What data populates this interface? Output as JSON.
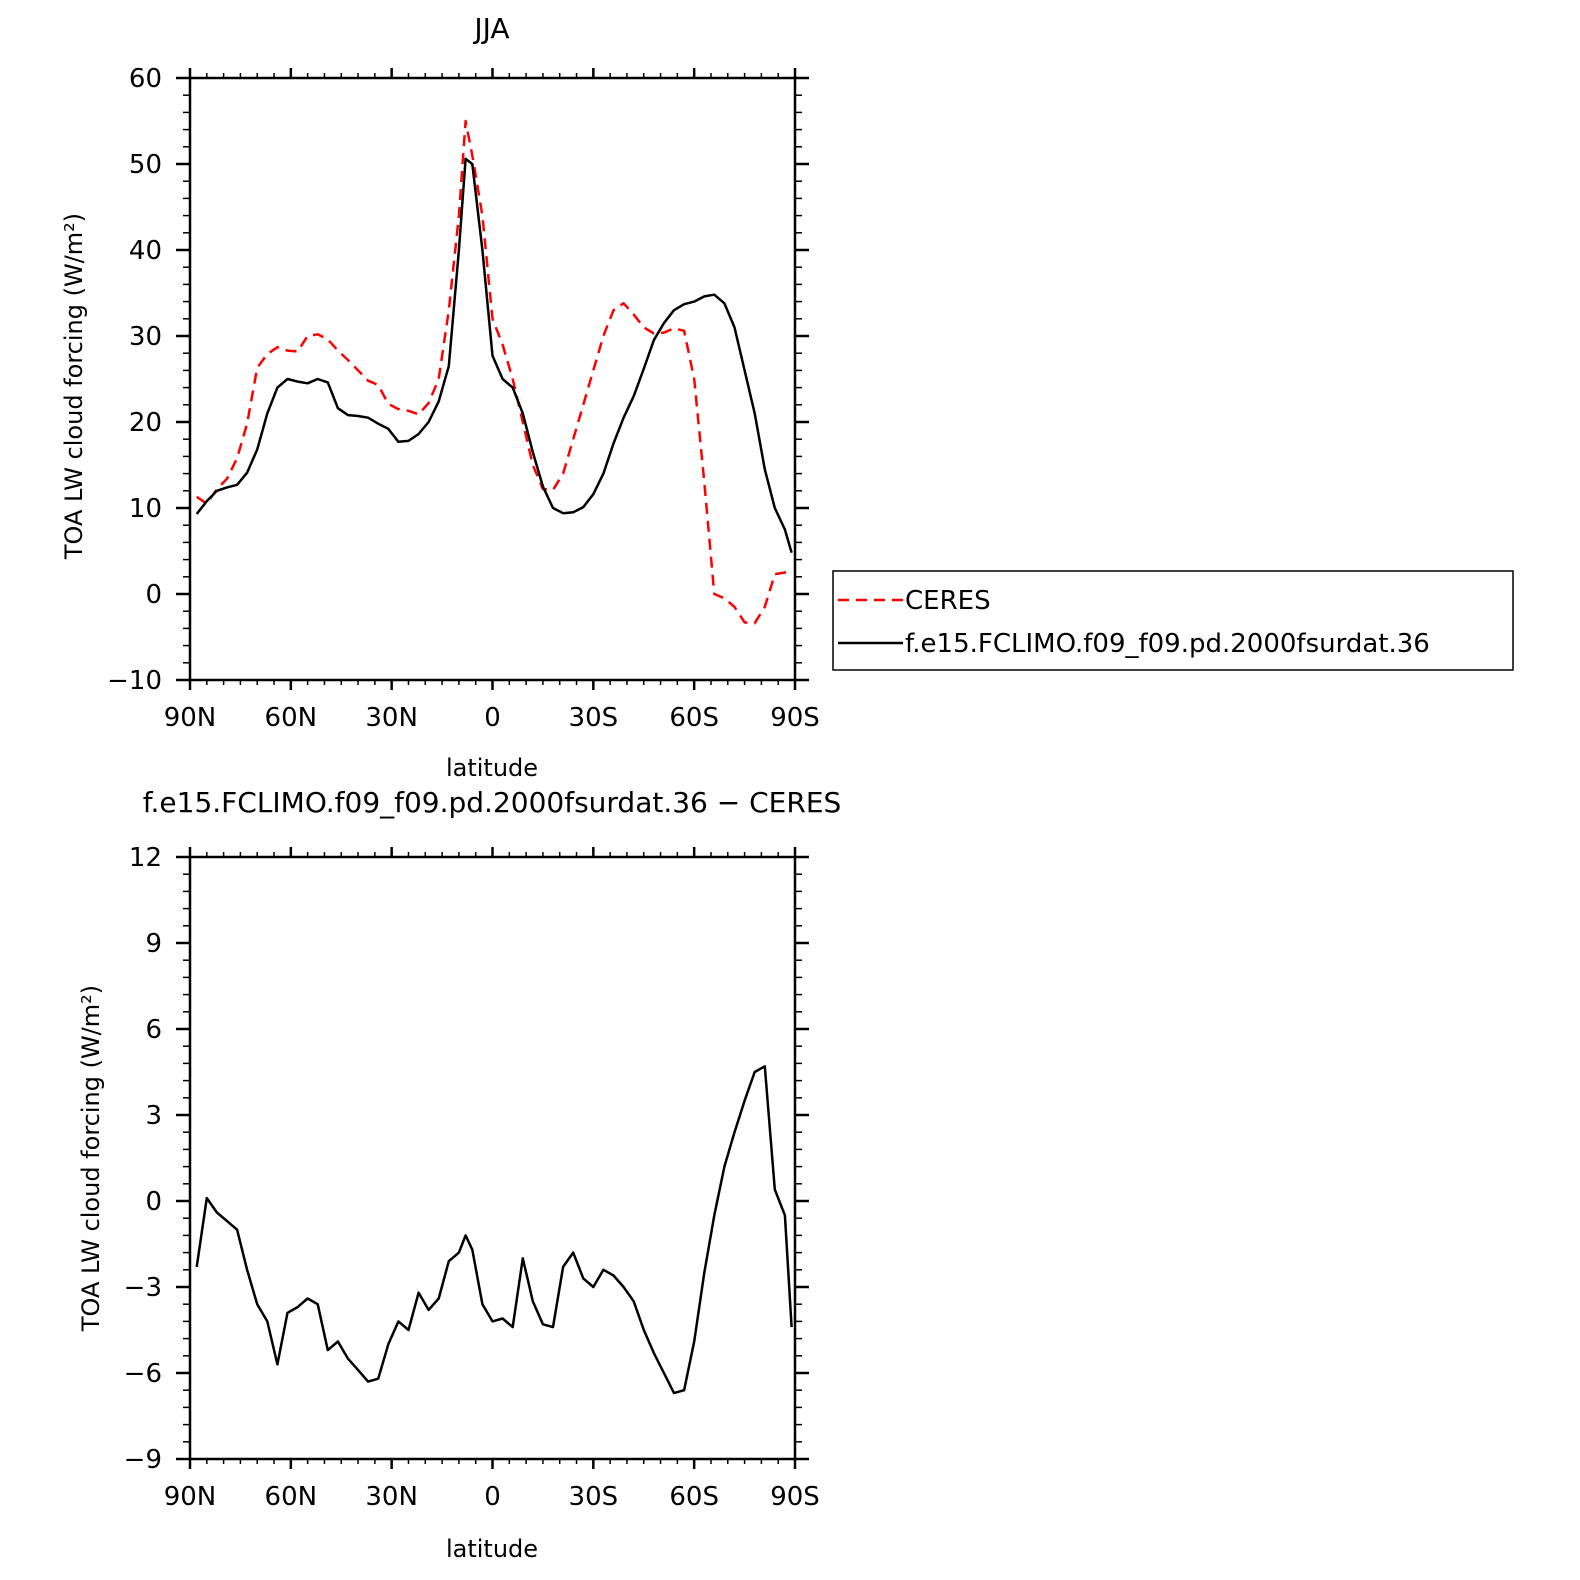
{
  "chart_data": [
    {
      "type": "line",
      "title": "JJA",
      "xlabel": "latitude",
      "ylabel": "TOA LW cloud forcing (W/m²)",
      "xlim": [
        -90,
        90
      ],
      "ylim": [
        -10,
        60
      ],
      "xticks": [
        {
          "value": -90,
          "label": "90N"
        },
        {
          "value": -60,
          "label": "60N"
        },
        {
          "value": -30,
          "label": "30N"
        },
        {
          "value": 0,
          "label": "0"
        },
        {
          "value": 30,
          "label": "30S"
        },
        {
          "value": 60,
          "label": "60S"
        },
        {
          "value": 90,
          "label": "90S"
        }
      ],
      "yticks": [
        {
          "value": 60,
          "label": "60"
        },
        {
          "value": 50,
          "label": "50"
        },
        {
          "value": 40,
          "label": "40"
        },
        {
          "value": 30,
          "label": "30"
        },
        {
          "value": 20,
          "label": "20"
        },
        {
          "value": 10,
          "label": "10"
        },
        {
          "value": 0,
          "label": "0"
        },
        {
          "value": -10,
          "label": "−10"
        }
      ],
      "legend_position": "right",
      "series": [
        {
          "name": "CERES",
          "color": "#ff0000",
          "dash": true,
          "x": [
            -88,
            -85,
            -82,
            -79,
            -76,
            -73,
            -70,
            -67,
            -64,
            -61,
            -58,
            -55,
            -52,
            -49,
            -46,
            -43,
            -40,
            -37,
            -34,
            -31,
            -28,
            -25,
            -22,
            -19,
            -16,
            -13,
            -10,
            -8,
            -6,
            -3,
            0,
            3,
            6,
            9,
            12,
            15,
            18,
            21,
            24,
            27,
            30,
            33,
            36,
            39,
            42,
            45,
            48,
            51,
            54,
            57,
            60,
            63,
            66,
            69,
            72,
            75,
            78,
            81,
            84,
            87,
            89
          ],
          "y": [
            11.3,
            10.5,
            12.2,
            13.4,
            15.8,
            19.8,
            26.3,
            27.9,
            28.7,
            28.3,
            28.2,
            30.0,
            30.2,
            29.6,
            28.3,
            27.2,
            26.0,
            24.8,
            24.3,
            22.1,
            21.5,
            21.3,
            20.9,
            22.2,
            25.0,
            33.0,
            44.0,
            55.0,
            51.0,
            44.0,
            32.0,
            29.0,
            25.0,
            20.0,
            15.0,
            12.2,
            12.1,
            14.0,
            18.0,
            22.0,
            26.0,
            30.0,
            33.0,
            33.8,
            32.5,
            31.0,
            30.3,
            30.4,
            30.9,
            30.6,
            25.0,
            13.0,
            0.0,
            -0.5,
            -1.5,
            -3.3,
            -3.4,
            -1.5,
            2.3,
            2.5,
            2.4
          ]
        },
        {
          "name": "f.e15.FCLIMO.f09_f09.pd.2000fsurdat.36",
          "color": "#000000",
          "dash": false,
          "x": [
            -88,
            -85,
            -82,
            -79,
            -76,
            -73,
            -70,
            -67,
            -64,
            -61,
            -58,
            -55,
            -52,
            -49,
            -46,
            -43,
            -40,
            -37,
            -34,
            -31,
            -28,
            -25,
            -22,
            -19,
            -16,
            -13,
            -10,
            -8,
            -6,
            -3,
            0,
            3,
            6,
            9,
            12,
            15,
            18,
            21,
            24,
            27,
            30,
            33,
            36,
            39,
            42,
            45,
            48,
            51,
            54,
            57,
            60,
            63,
            66,
            69,
            72,
            75,
            78,
            81,
            84,
            87,
            89
          ],
          "y": [
            9.3,
            10.8,
            12.0,
            12.4,
            12.7,
            14.1,
            16.8,
            21.0,
            24.0,
            25.0,
            24.7,
            24.5,
            25.0,
            24.6,
            21.6,
            20.8,
            20.7,
            20.5,
            19.8,
            19.2,
            17.7,
            17.8,
            18.6,
            20.0,
            22.4,
            26.5,
            40.0,
            50.6,
            50.0,
            40.0,
            27.7,
            25.0,
            24.0,
            21.0,
            16.5,
            12.5,
            10.0,
            9.4,
            9.5,
            10.1,
            11.6,
            14.0,
            17.5,
            20.5,
            23.0,
            26.2,
            29.5,
            31.5,
            33.0,
            33.7,
            34.0,
            34.6,
            34.8,
            33.8,
            31.0,
            26.0,
            21.0,
            14.5,
            10.0,
            7.5,
            4.8
          ]
        }
      ]
    },
    {
      "type": "line",
      "title": "f.e15.FCLIMO.f09_f09.pd.2000fsurdat.36 − CERES",
      "xlabel": "latitude",
      "ylabel": "TOA LW cloud forcing (W/m²)",
      "xlim": [
        -90,
        90
      ],
      "ylim": [
        -9,
        12
      ],
      "xticks": [
        {
          "value": -90,
          "label": "90N"
        },
        {
          "value": -60,
          "label": "60N"
        },
        {
          "value": -30,
          "label": "30N"
        },
        {
          "value": 0,
          "label": "0"
        },
        {
          "value": 30,
          "label": "30S"
        },
        {
          "value": 60,
          "label": "60S"
        },
        {
          "value": 90,
          "label": "90S"
        }
      ],
      "yticks": [
        {
          "value": 12,
          "label": "12"
        },
        {
          "value": 9,
          "label": "9"
        },
        {
          "value": 6,
          "label": "6"
        },
        {
          "value": 3,
          "label": "3"
        },
        {
          "value": 0,
          "label": "0"
        },
        {
          "value": -3,
          "label": "−3"
        },
        {
          "value": -6,
          "label": "−6"
        },
        {
          "value": -9,
          "label": "−9"
        }
      ],
      "series": [
        {
          "color": "#000000",
          "dash": false,
          "x": [
            -88,
            -85,
            -82,
            -79,
            -76,
            -73,
            -70,
            -67,
            -64,
            -61,
            -58,
            -55,
            -52,
            -49,
            -46,
            -43,
            -40,
            -37,
            -34,
            -31,
            -28,
            -25,
            -22,
            -19,
            -16,
            -13,
            -10,
            -8,
            -6,
            -3,
            0,
            3,
            6,
            9,
            12,
            15,
            18,
            21,
            24,
            27,
            30,
            33,
            36,
            39,
            42,
            45,
            48,
            51,
            54,
            57,
            60,
            63,
            66,
            69,
            72,
            75,
            78,
            81,
            84,
            87,
            89
          ],
          "y": [
            -2.3,
            0.1,
            -0.4,
            -0.7,
            -1.0,
            -2.4,
            -3.6,
            -4.2,
            -5.7,
            -3.9,
            -3.7,
            -3.4,
            -3.6,
            -5.2,
            -4.9,
            -5.5,
            -5.9,
            -6.3,
            -6.2,
            -5.0,
            -4.2,
            -4.5,
            -3.2,
            -3.8,
            -3.4,
            -2.1,
            -1.8,
            -1.2,
            -1.7,
            -3.6,
            -4.2,
            -4.1,
            -4.4,
            -2.0,
            -3.5,
            -4.3,
            -4.4,
            -2.3,
            -1.8,
            -2.7,
            -3.0,
            -2.4,
            -2.6,
            -3.0,
            -3.5,
            -4.5,
            -5.3,
            -6.0,
            -6.7,
            -6.6,
            -4.9,
            -2.5,
            -0.5,
            1.2,
            2.4,
            3.5,
            4.5,
            4.7,
            0.4,
            -0.5,
            -4.4
          ]
        }
      ]
    }
  ]
}
